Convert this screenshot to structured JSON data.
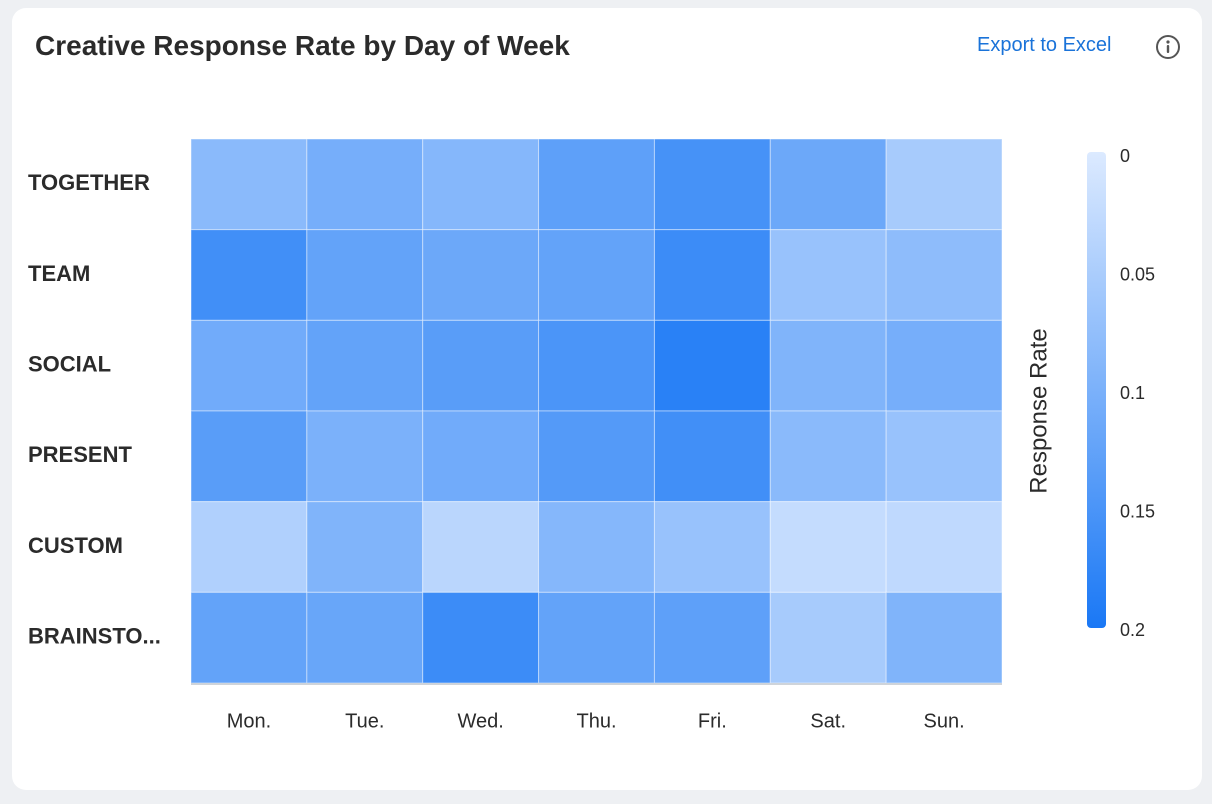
{
  "header": {
    "title": "Creative Response Rate by Day of Week",
    "export_label": "Export to Excel",
    "info_icon": "info-icon"
  },
  "chart_data": {
    "type": "heatmap",
    "title": "Creative Response Rate by Day of Week",
    "x_categories": [
      "Mon.",
      "Tue.",
      "Wed.",
      "Thu.",
      "Fri.",
      "Sat.",
      "Sun."
    ],
    "y_categories": [
      "TOGETHER",
      "TEAM",
      "SOCIAL",
      "PRESENT",
      "CUSTOM",
      "BRAINSTO..."
    ],
    "values": [
      [
        0.085,
        0.105,
        0.09,
        0.13,
        0.155,
        0.115,
        0.055
      ],
      [
        0.16,
        0.125,
        0.115,
        0.125,
        0.165,
        0.07,
        0.08
      ],
      [
        0.11,
        0.125,
        0.135,
        0.15,
        0.185,
        0.095,
        0.105
      ],
      [
        0.135,
        0.1,
        0.11,
        0.14,
        0.16,
        0.085,
        0.07
      ],
      [
        0.045,
        0.095,
        0.035,
        0.09,
        0.07,
        0.025,
        0.03
      ],
      [
        0.125,
        0.12,
        0.165,
        0.125,
        0.13,
        0.055,
        0.095
      ]
    ],
    "colorbar": {
      "label": "Response Rate",
      "min": 0,
      "max": 0.2,
      "ticks": [
        "0",
        "0.05",
        "0.1",
        "0.15",
        "0.2"
      ],
      "color_low": "#dceaff",
      "color_high": "#1a78f5"
    },
    "legend_position": "right"
  }
}
